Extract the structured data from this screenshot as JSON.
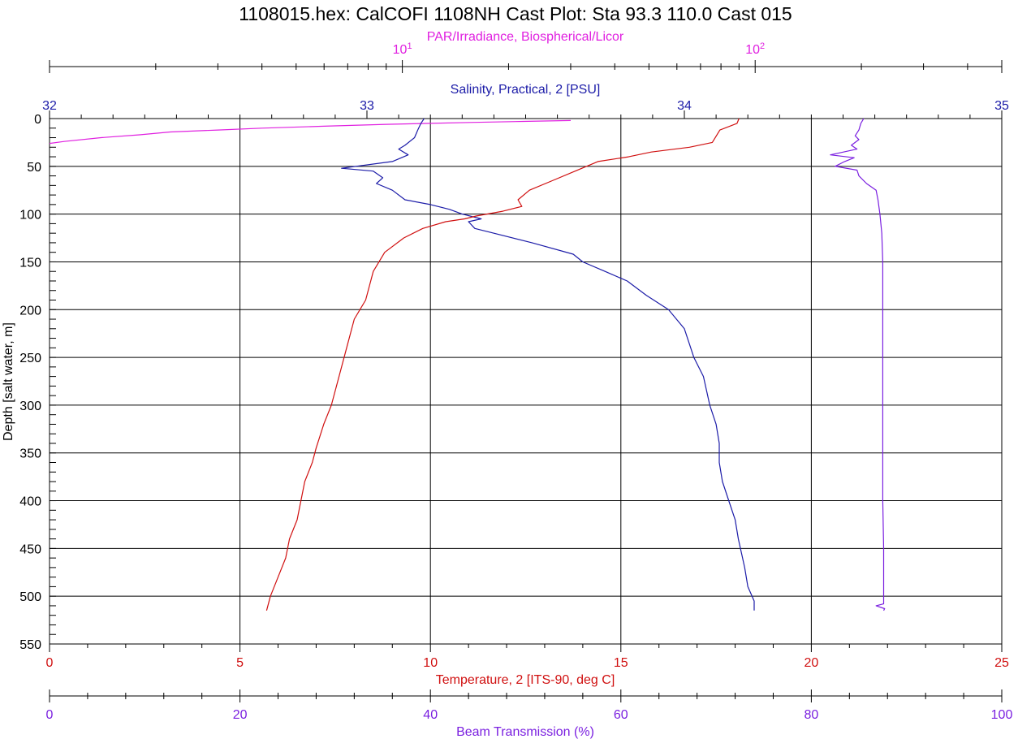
{
  "chart_data": {
    "type": "line",
    "title": "1108015.hex: CalCOFI 1108NH Cast Plot: Sta 93.3 110.0 Cast 015",
    "grid": true,
    "y_axis": {
      "label": "Depth [salt water, m]",
      "range": [
        0,
        550
      ],
      "inverted": true,
      "ticks": [
        0,
        50,
        100,
        150,
        200,
        250,
        300,
        350,
        400,
        450,
        500,
        550
      ]
    },
    "x_axes": {
      "par": {
        "label": "PAR/Irradiance, Biospherical/Licor",
        "scale": "log",
        "range": [
          1,
          500
        ],
        "position": "top",
        "color": "#e020e0",
        "ticks": [
          {
            "value": 10,
            "base": "10",
            "exp": "1"
          },
          {
            "value": 100,
            "base": "10",
            "exp": "2"
          }
        ]
      },
      "salinity": {
        "label": "Salinity, Practical, 2 [PSU]",
        "range": [
          32,
          35
        ],
        "position": "top",
        "color": "#1c1ca8",
        "ticks": [
          "32",
          "33",
          "34",
          "35"
        ]
      },
      "temperature": {
        "label": "Temperature, 2 [ITS-90, deg C]",
        "range": [
          0,
          25
        ],
        "position": "bottom",
        "color": "#d01010",
        "ticks": [
          "0",
          "5",
          "10",
          "15",
          "20",
          "25"
        ]
      },
      "beam": {
        "label": "Beam Transmission (%)",
        "range": [
          0,
          100
        ],
        "position": "bottom",
        "color": "#7a1fe0",
        "ticks": [
          "0",
          "20",
          "40",
          "60",
          "80",
          "100"
        ]
      }
    },
    "series": [
      {
        "name": "PAR/Irradiance, Biospherical/Licor",
        "axis": "par",
        "color": "#e020e0",
        "points": [
          [
            30,
            2
          ],
          [
            22,
            3
          ],
          [
            16,
            4
          ],
          [
            12,
            5
          ],
          [
            9,
            6
          ],
          [
            6,
            8
          ],
          [
            4,
            10
          ],
          [
            3,
            12
          ],
          [
            2.2,
            14
          ],
          [
            1.8,
            17
          ],
          [
            1.4,
            20
          ],
          [
            1.1,
            24
          ],
          [
            1.0,
            26
          ]
        ]
      },
      {
        "name": "Salinity, Practical, 2 [PSU]",
        "axis": "salinity",
        "color": "#1c1ca8",
        "points": [
          [
            33.18,
            0
          ],
          [
            33.17,
            5
          ],
          [
            33.16,
            12
          ],
          [
            33.15,
            20
          ],
          [
            33.12,
            28
          ],
          [
            33.1,
            32
          ],
          [
            33.13,
            38
          ],
          [
            33.08,
            45
          ],
          [
            32.92,
            52
          ],
          [
            33.02,
            55
          ],
          [
            33.05,
            62
          ],
          [
            33.03,
            68
          ],
          [
            33.08,
            75
          ],
          [
            33.12,
            85
          ],
          [
            33.2,
            90
          ],
          [
            33.26,
            95
          ],
          [
            33.3,
            100
          ],
          [
            33.36,
            105
          ],
          [
            33.32,
            108
          ],
          [
            33.34,
            115
          ],
          [
            33.4,
            120
          ],
          [
            33.52,
            130
          ],
          [
            33.65,
            142
          ],
          [
            33.68,
            150
          ],
          [
            33.75,
            160
          ],
          [
            33.82,
            170
          ],
          [
            33.88,
            185
          ],
          [
            33.95,
            200
          ],
          [
            34.0,
            220
          ],
          [
            34.03,
            250
          ],
          [
            34.06,
            270
          ],
          [
            34.08,
            300
          ],
          [
            34.1,
            320
          ],
          [
            34.11,
            340
          ],
          [
            34.11,
            360
          ],
          [
            34.12,
            380
          ],
          [
            34.14,
            400
          ],
          [
            34.16,
            420
          ],
          [
            34.17,
            440
          ],
          [
            34.19,
            470
          ],
          [
            34.2,
            490
          ],
          [
            34.22,
            505
          ],
          [
            34.22,
            515
          ]
        ]
      },
      {
        "name": "Temperature, 2 [ITS-90, deg C]",
        "axis": "temperature",
        "color": "#d01010",
        "points": [
          [
            18.1,
            0
          ],
          [
            18.05,
            5
          ],
          [
            17.6,
            12
          ],
          [
            17.4,
            25
          ],
          [
            16.8,
            30
          ],
          [
            15.8,
            35
          ],
          [
            15.2,
            40
          ],
          [
            14.4,
            45
          ],
          [
            13.8,
            55
          ],
          [
            13.2,
            65
          ],
          [
            12.6,
            75
          ],
          [
            12.3,
            85
          ],
          [
            12.4,
            92
          ],
          [
            11.9,
            97
          ],
          [
            11.2,
            102
          ],
          [
            10.9,
            105
          ],
          [
            10.4,
            108
          ],
          [
            9.8,
            115
          ],
          [
            9.3,
            125
          ],
          [
            8.8,
            140
          ],
          [
            8.5,
            160
          ],
          [
            8.4,
            175
          ],
          [
            8.3,
            190
          ],
          [
            8.0,
            210
          ],
          [
            7.8,
            240
          ],
          [
            7.6,
            270
          ],
          [
            7.4,
            300
          ],
          [
            7.2,
            320
          ],
          [
            7.0,
            345
          ],
          [
            6.9,
            360
          ],
          [
            6.7,
            380
          ],
          [
            6.6,
            400
          ],
          [
            6.5,
            420
          ],
          [
            6.3,
            440
          ],
          [
            6.2,
            460
          ],
          [
            6.0,
            480
          ],
          [
            5.8,
            500
          ],
          [
            5.7,
            515
          ]
        ]
      },
      {
        "name": "Beam Transmission (%)",
        "axis": "beam",
        "color": "#7a1fe0",
        "points": [
          [
            85.5,
            0
          ],
          [
            85.2,
            5
          ],
          [
            85.0,
            12
          ],
          [
            84.6,
            18
          ],
          [
            85.0,
            22
          ],
          [
            84.2,
            28
          ],
          [
            84.8,
            32
          ],
          [
            82.0,
            38
          ],
          [
            84.5,
            41
          ],
          [
            83.5,
            45
          ],
          [
            82.5,
            50
          ],
          [
            84.8,
            54
          ],
          [
            85.0,
            60
          ],
          [
            85.8,
            68
          ],
          [
            86.8,
            75
          ],
          [
            87.0,
            85
          ],
          [
            87.2,
            100
          ],
          [
            87.4,
            120
          ],
          [
            87.5,
            150
          ],
          [
            87.5,
            200
          ],
          [
            87.5,
            250
          ],
          [
            87.5,
            300
          ],
          [
            87.5,
            350
          ],
          [
            87.5,
            400
          ],
          [
            87.6,
            450
          ],
          [
            87.6,
            500
          ],
          [
            87.6,
            508
          ],
          [
            86.8,
            510
          ],
          [
            87.7,
            513
          ],
          [
            87.6,
            515
          ]
        ]
      }
    ]
  }
}
